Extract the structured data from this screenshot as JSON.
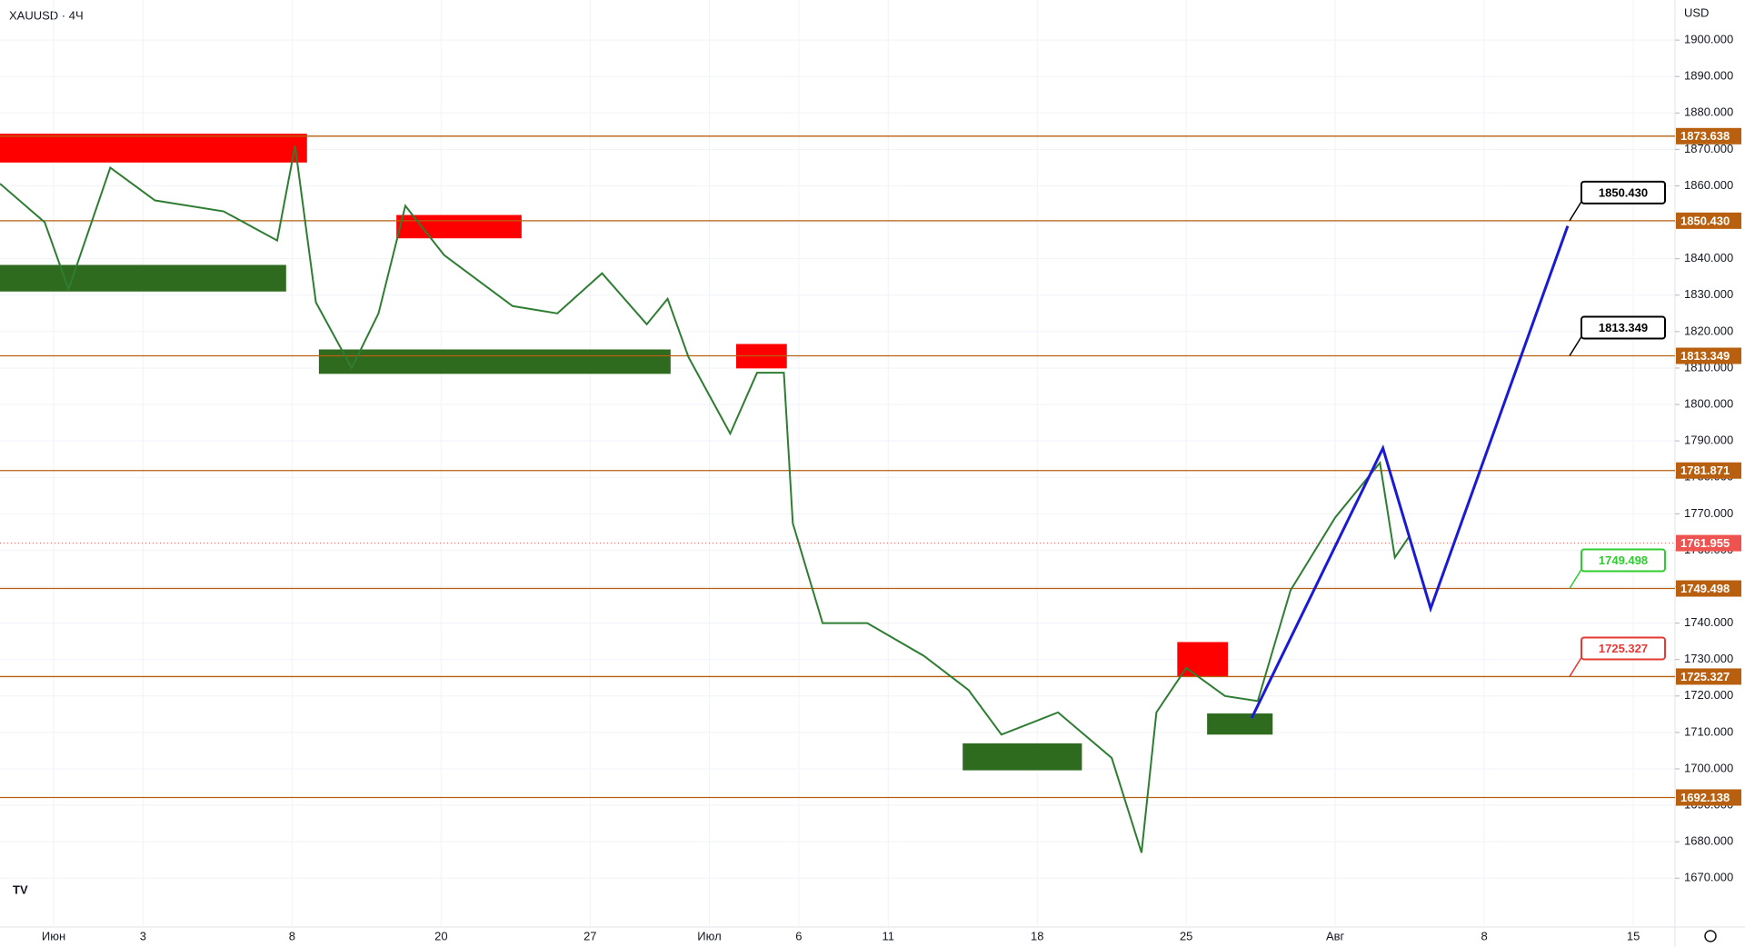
{
  "chart_data": {
    "type": "line",
    "title": "XAUUSD · 4Ч",
    "currency": "USD",
    "x": [
      -1.8,
      -0.3,
      0.5,
      1.9,
      3.4,
      5.7,
      7.5,
      8.1,
      8.8,
      10.0,
      10.9,
      11.8,
      13.1,
      15.4,
      16.9,
      18.4,
      19.9,
      20.6,
      21.3,
      22.7,
      23.6,
      24.5,
      24.8,
      25.8,
      27.3,
      29.2,
      30.7,
      31.8,
      33.7,
      35.5,
      36.5,
      37.0,
      38.0,
      39.3,
      40.4,
      41.5,
      43.0,
      44.5,
      45.0,
      45.5
    ],
    "values": [
      1860.6,
      1850,
      1831.6,
      1865,
      1856,
      1853,
      1845,
      1871,
      1828,
      1810,
      1825,
      1854.5,
      1841,
      1827,
      1825,
      1836,
      1822,
      1829,
      1813,
      1792,
      1808.7,
      1808.7,
      1767.4,
      1740,
      1740,
      1731,
      1721.6,
      1709.4,
      1715.5,
      1703,
      1677,
      1715.5,
      1727.7,
      1720,
      1718.6,
      1749,
      1769,
      1784,
      1758,
      1764
    ],
    "color": "#2e7d32",
    "projection": {
      "x": [
        40.2,
        44.6,
        46.2,
        50.8
      ],
      "values": [
        1714,
        1788,
        1744,
        1849
      ],
      "color": "#1a1ad6"
    },
    "levels": [
      {
        "value": 1873.638,
        "label": "1873.638"
      },
      {
        "value": 1850.43,
        "label": "1850.430",
        "callout": "#000000"
      },
      {
        "value": 1813.349,
        "label": "1813.349",
        "callout": "#000000"
      },
      {
        "value": 1781.871,
        "label": "1781.871"
      },
      {
        "value": 1749.498,
        "label": "1749.498",
        "callout": "#2ecc2e"
      },
      {
        "value": 1725.327,
        "label": "1725.327",
        "callout": "#e53935"
      },
      {
        "value": 1692.138,
        "label": "1692.138"
      }
    ],
    "level_color": "#b8600f",
    "last_price": {
      "value": 1761.955,
      "label": "1761.955",
      "color": "#ef5350"
    },
    "zones": [
      {
        "x": [
          -1.8,
          8.5
        ],
        "y": [
          1866.4,
          1874.3
        ],
        "color": "#ff0000"
      },
      {
        "x": [
          -1.8,
          7.8
        ],
        "y": [
          1831,
          1838.3
        ],
        "color": "#2e6b1f"
      },
      {
        "x": [
          11.5,
          15.7
        ],
        "y": [
          1845.6,
          1852
        ],
        "color": "#ff0000"
      },
      {
        "x": [
          8.9,
          20.7
        ],
        "y": [
          1808.4,
          1815.1
        ],
        "color": "#2e6b1f"
      },
      {
        "x": [
          22.9,
          24.6
        ],
        "y": [
          1809.9,
          1816.6
        ],
        "color": "#ff0000"
      },
      {
        "x": [
          30.5,
          34.5
        ],
        "y": [
          1699.6,
          1707
        ],
        "color": "#2e6b1f"
      },
      {
        "x": [
          37.7,
          39.4
        ],
        "y": [
          1725.3,
          1734.8
        ],
        "color": "#ff0000"
      },
      {
        "x": [
          38.7,
          40.9
        ],
        "y": [
          1709.4,
          1715.2
        ],
        "color": "#2e6b1f"
      }
    ],
    "xlim": [
      -1.8,
      54.4
    ],
    "ylim": [
      1656.6,
      1911
    ],
    "xticks": [
      {
        "value": 0,
        "label": "Июн"
      },
      3,
      8,
      {
        "value": 13,
        "label": "20"
      },
      {
        "value": 18,
        "label": "27"
      },
      {
        "value": 22,
        "label": "Июл"
      },
      {
        "value": 25,
        "label": "6"
      },
      {
        "value": 28,
        "label": "11"
      },
      {
        "value": 33,
        "label": "18"
      },
      {
        "value": 38,
        "label": "25"
      },
      {
        "value": 43,
        "label": "Авг"
      },
      {
        "value": 48,
        "label": "8"
      },
      {
        "value": 53,
        "label": "15"
      }
    ],
    "yticks": [
      {
        "value": 1670,
        "label": "1670.000"
      },
      {
        "value": 1680,
        "label": "1680.000"
      },
      {
        "value": 1690,
        "label": "1690.000"
      },
      {
        "value": 1700,
        "label": "1700.000"
      },
      {
        "value": 1710,
        "label": "1710.000"
      },
      {
        "value": 1720,
        "label": "1720.000"
      },
      {
        "value": 1730,
        "label": "1730.000"
      },
      {
        "value": 1740,
        "label": "1740.000"
      },
      {
        "value": 1750,
        "label": "1750.000"
      },
      {
        "value": 1760,
        "label": "1760.000"
      },
      {
        "value": 1770,
        "label": "1770.000"
      },
      {
        "value": 1780,
        "label": "1780.000"
      },
      {
        "value": 1790,
        "label": "1790.000"
      },
      {
        "value": 1800,
        "label": "1800.000"
      },
      {
        "value": 1810,
        "label": "1810.000"
      },
      {
        "value": 1820,
        "label": "1820.000"
      },
      {
        "value": 1830,
        "label": "1830.000"
      },
      {
        "value": 1840,
        "label": "1840.000"
      },
      {
        "value": 1850,
        "label": "1850.000"
      },
      {
        "value": 1860,
        "label": "1860.000"
      },
      {
        "value": 1870,
        "label": "1870.000"
      },
      {
        "value": 1880,
        "label": "1880.000"
      },
      {
        "value": 1890,
        "label": "1890.000"
      },
      {
        "value": 1900,
        "label": "1900.000"
      }
    ]
  }
}
